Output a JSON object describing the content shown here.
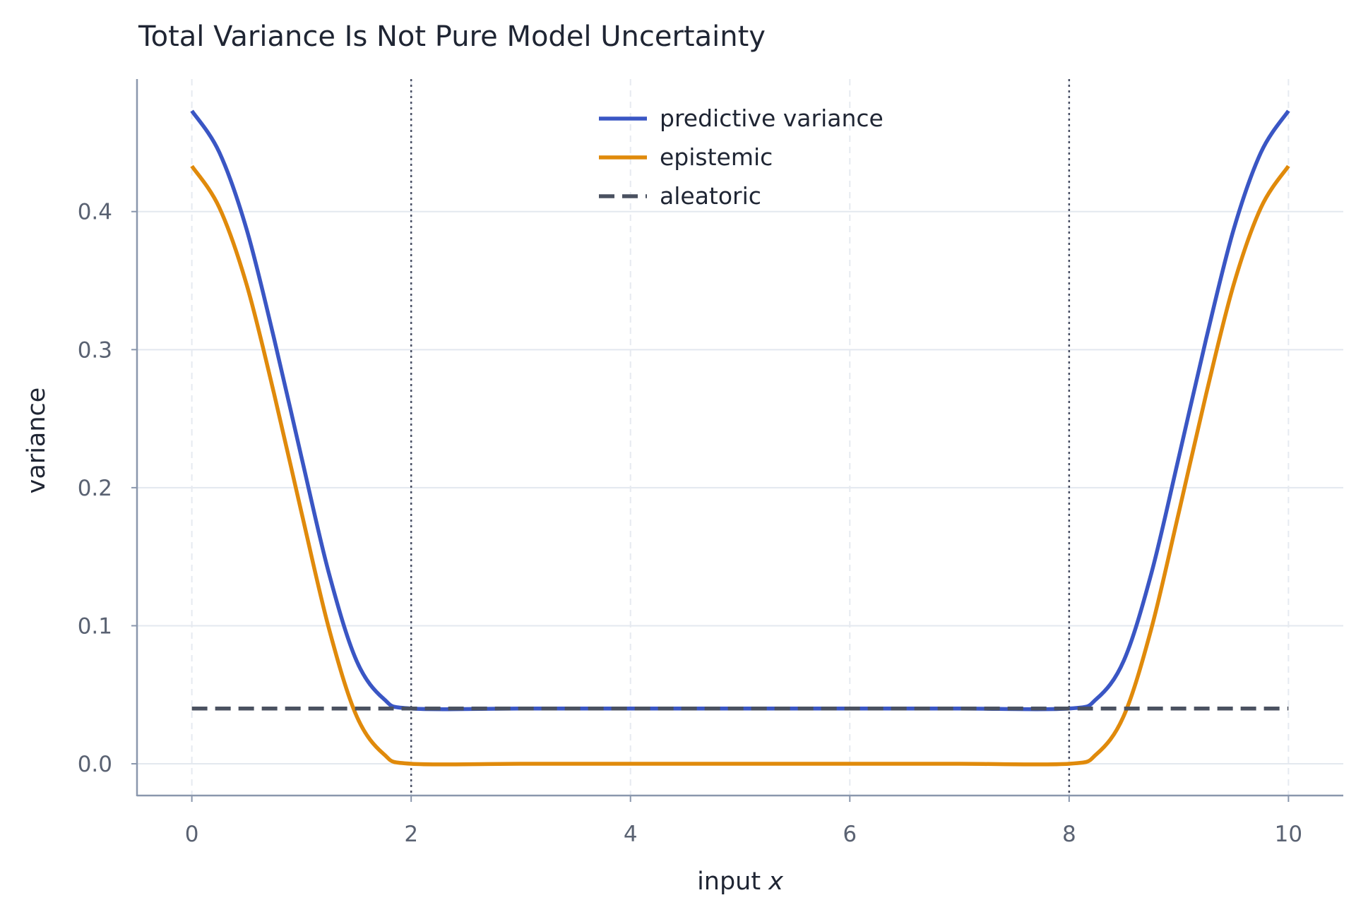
{
  "chart_data": {
    "type": "line",
    "title": "Total Variance Is Not Pure Model Uncertainty",
    "xlabel_text": "input ",
    "xlabel_var": "x",
    "ylabel": "variance",
    "xlim": [
      -0.5,
      10.5
    ],
    "ylim": [
      -0.023,
      0.496
    ],
    "xticks": [
      0,
      2,
      4,
      6,
      8,
      10
    ],
    "xtick_labels": [
      "0",
      "2",
      "4",
      "6",
      "8",
      "10"
    ],
    "yticks": [
      0.0,
      0.1,
      0.2,
      0.3,
      0.4
    ],
    "ytick_labels": [
      "0.0",
      "0.1",
      "0.2",
      "0.3",
      "0.4"
    ],
    "grid": true,
    "legend_position": "top-center",
    "vlines": [
      2,
      8
    ],
    "x": [
      0,
      0.25,
      0.5,
      0.75,
      1.0,
      1.25,
      1.5,
      1.75,
      2.0,
      3.0,
      4.0,
      5.0,
      6.0,
      7.0,
      8.0,
      8.25,
      8.5,
      8.75,
      9.0,
      9.25,
      9.5,
      9.75,
      10.0
    ],
    "series": [
      {
        "name": "predictive variance",
        "color": "#3a56c4",
        "style": "solid",
        "values": [
          0.473,
          0.443,
          0.387,
          0.308,
          0.222,
          0.138,
          0.075,
          0.047,
          0.04,
          0.04,
          0.04,
          0.04,
          0.04,
          0.04,
          0.04,
          0.047,
          0.075,
          0.138,
          0.222,
          0.308,
          0.387,
          0.443,
          0.473
        ]
      },
      {
        "name": "epistemic",
        "color": "#e08a0b",
        "style": "solid",
        "values": [
          0.433,
          0.403,
          0.347,
          0.268,
          0.182,
          0.098,
          0.035,
          0.007,
          0.0,
          0.0,
          0.0,
          0.0,
          0.0,
          0.0,
          0.0,
          0.007,
          0.035,
          0.098,
          0.182,
          0.268,
          0.347,
          0.403,
          0.433
        ]
      },
      {
        "name": "aleatoric",
        "color": "#4a5160",
        "style": "dashed",
        "values": [
          0.04,
          0.04,
          0.04,
          0.04,
          0.04,
          0.04,
          0.04,
          0.04,
          0.04,
          0.04,
          0.04,
          0.04,
          0.04,
          0.04,
          0.04,
          0.04,
          0.04,
          0.04,
          0.04,
          0.04,
          0.04,
          0.04,
          0.04
        ]
      }
    ]
  }
}
